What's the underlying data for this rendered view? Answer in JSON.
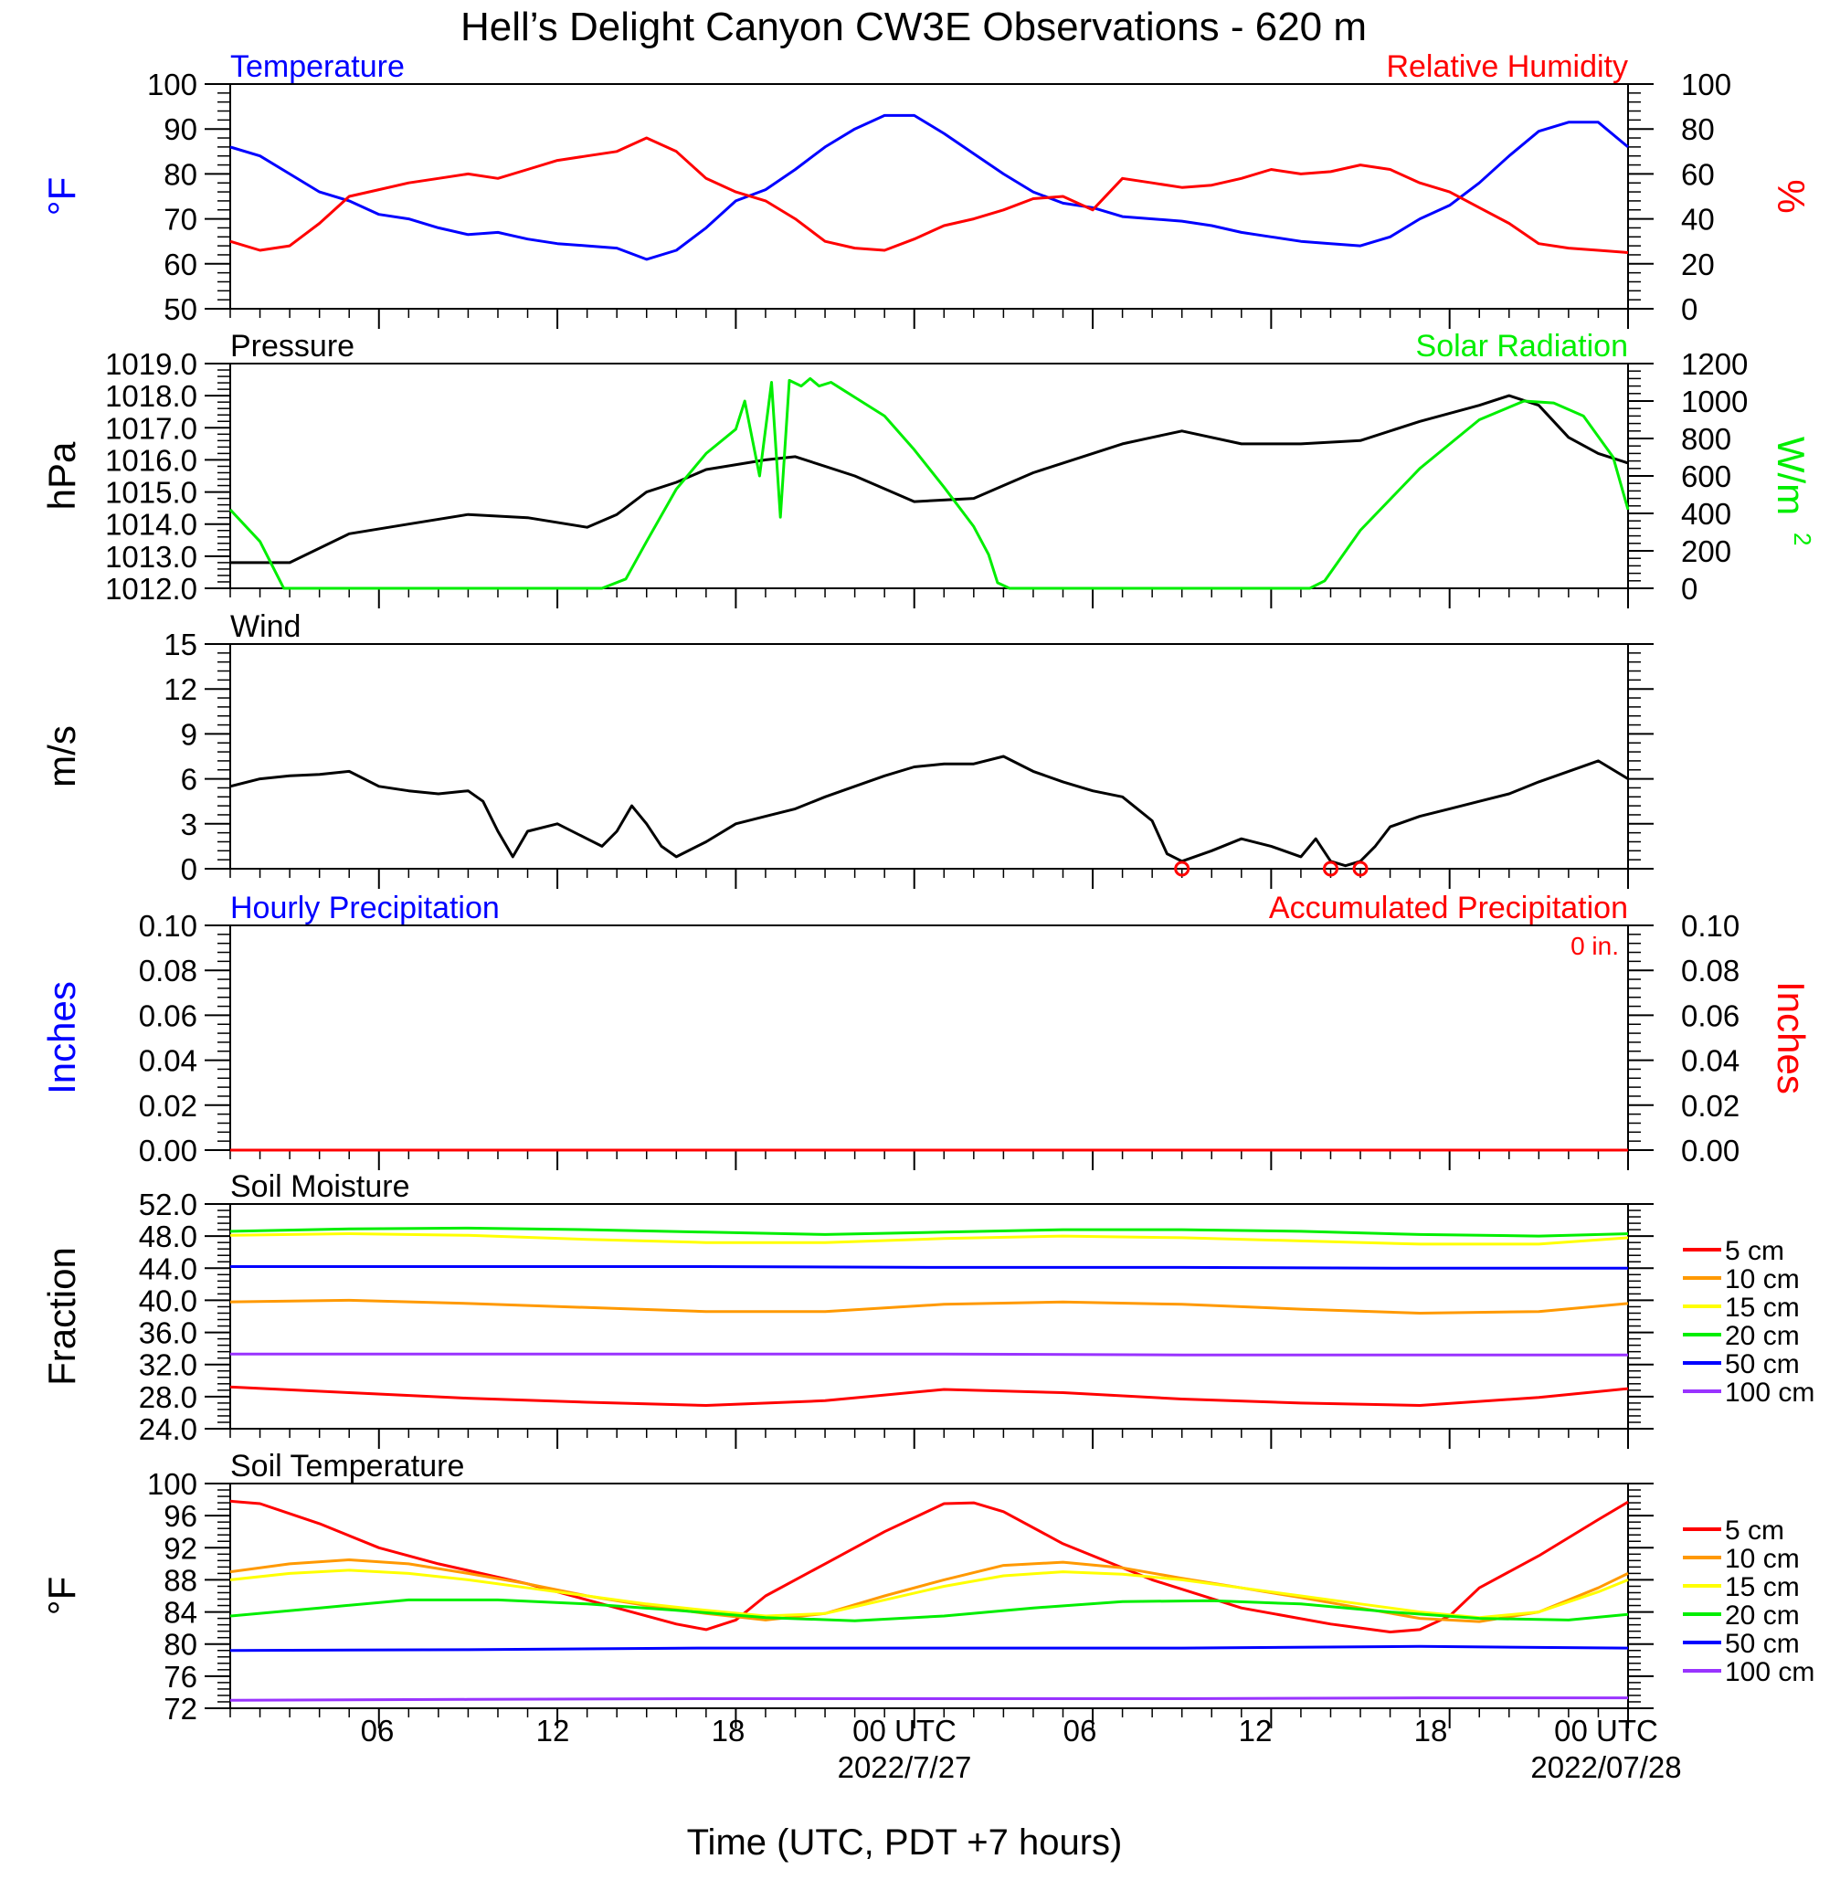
{
  "title": "Hell’s Delight Canyon CW3E Observations - 620 m",
  "xaxis": {
    "title": "Time (UTC, PDT +7 hours)",
    "tick_labels": [
      "06",
      "12",
      "18",
      "00 UTC",
      "06",
      "12",
      "18",
      "00 UTC"
    ],
    "date_labels": [
      "2022/7/27",
      "2022/07/28"
    ]
  },
  "colors": {
    "blue": "#0000ff",
    "red": "#ff0000",
    "green": "#00ee00",
    "orange": "#ff9900",
    "yellow": "#ffff00",
    "purple": "#9933ff",
    "black": "#000000"
  },
  "chart_data": [
    {
      "id": "temp_rh",
      "type": "line",
      "left_title": "Temperature",
      "right_title": "Relative Humidity",
      "ylabel_left": "°F",
      "ylabel_right": "%",
      "ylim_left": [
        50,
        100
      ],
      "ylim_right": [
        0,
        100
      ],
      "yticks_left": [
        "50",
        "60",
        "70",
        "80",
        "90",
        "100"
      ],
      "yticks_right": [
        "0",
        "20",
        "40",
        "60",
        "80",
        "100"
      ],
      "series": [
        {
          "color": "blue",
          "axis": "left",
          "x": [
            0,
            1,
            2,
            3,
            4,
            5,
            6,
            7,
            8,
            9,
            10,
            11,
            12,
            13,
            14,
            15,
            16,
            17,
            18,
            19,
            20,
            21,
            22,
            23,
            24,
            25,
            26,
            27,
            28,
            29,
            30,
            31,
            32,
            33,
            34,
            35,
            36,
            37,
            38,
            39,
            40,
            41,
            42,
            43,
            44,
            45,
            46,
            47
          ],
          "values": [
            86,
            84,
            80,
            76,
            74,
            71,
            70,
            68,
            66.5,
            67,
            65.5,
            64.5,
            64,
            63.5,
            61,
            63,
            68,
            74,
            76.5,
            81,
            86,
            90,
            93,
            93,
            89,
            84.5,
            80,
            76,
            73.5,
            72.5,
            70.5,
            70,
            69.5,
            68.5,
            67,
            66,
            65,
            64.5,
            64,
            66,
            70,
            73,
            78,
            84,
            89.5,
            91.5,
            91.5,
            86
          ]
        },
        {
          "color": "red",
          "axis": "right",
          "x": [
            0,
            1,
            2,
            3,
            4,
            5,
            6,
            7,
            8,
            9,
            10,
            11,
            12,
            13,
            14,
            15,
            16,
            17,
            18,
            19,
            20,
            21,
            22,
            23,
            24,
            25,
            26,
            27,
            28,
            29,
            30,
            31,
            32,
            33,
            34,
            35,
            36,
            37,
            38,
            39,
            40,
            41,
            42,
            43,
            44,
            45,
            46,
            47
          ],
          "values": [
            30,
            26,
            28,
            38,
            50,
            53,
            56,
            58,
            60,
            58,
            62,
            66,
            68,
            70,
            76,
            70,
            58,
            52,
            48,
            40,
            30,
            27,
            26,
            31,
            37,
            40,
            44,
            49,
            50,
            44,
            58,
            56,
            54,
            55,
            58,
            62,
            60,
            61,
            64,
            62,
            56,
            52,
            45,
            38,
            29,
            27,
            26,
            25
          ]
        }
      ]
    },
    {
      "id": "pressure_solar",
      "type": "line",
      "left_title": "Pressure",
      "right_title": "Solar Radiation",
      "ylabel_left": "hPa",
      "ylabel_right": "W/m",
      "ylabel_right_sup": "2",
      "ylim_left": [
        1012,
        1019
      ],
      "ylim_right": [
        0,
        1200
      ],
      "yticks_left": [
        "1012.0",
        "1013.0",
        "1014.0",
        "1015.0",
        "1016.0",
        "1017.0",
        "1018.0",
        "1019.0"
      ],
      "yticks_right": [
        "0",
        "200",
        "400",
        "600",
        "800",
        "1000",
        "1200"
      ],
      "series": [
        {
          "color": "black",
          "axis": "left",
          "x": [
            0,
            2,
            4,
            6,
            8,
            10,
            12,
            13,
            14,
            15,
            16,
            18,
            19,
            21,
            23,
            25,
            26,
            27,
            28,
            30,
            31,
            32,
            34,
            36,
            38,
            40,
            42,
            43,
            44,
            45,
            46,
            47
          ],
          "values": [
            1012.8,
            1012.8,
            1013.7,
            1014.0,
            1014.3,
            1014.2,
            1013.9,
            1014.3,
            1015.0,
            1015.3,
            1015.7,
            1016.0,
            1016.1,
            1015.5,
            1014.7,
            1014.8,
            1015.2,
            1015.6,
            1015.9,
            1016.5,
            1016.7,
            1016.9,
            1016.5,
            1016.5,
            1016.6,
            1017.2,
            1017.7,
            1018.0,
            1017.7,
            1016.7,
            1016.2,
            1015.9
          ]
        },
        {
          "color": "green",
          "axis": "right",
          "x": [
            0,
            1,
            1.8,
            12.5,
            13.3,
            14,
            15,
            16,
            17,
            17.3,
            17.8,
            18.2,
            18.5,
            18.8,
            19.2,
            19.5,
            19.8,
            20.2,
            20.6,
            21,
            22,
            23,
            24,
            25,
            25.5,
            25.8,
            26.2,
            36.3,
            36.8,
            38,
            40,
            42,
            43.5,
            44.5,
            45.5,
            46.5,
            47
          ],
          "values": [
            420,
            250,
            0,
            0,
            50,
            250,
            530,
            720,
            850,
            1000,
            600,
            1100,
            380,
            1110,
            1080,
            1120,
            1080,
            1100,
            1060,
            1020,
            920,
            740,
            540,
            330,
            180,
            30,
            0,
            0,
            40,
            310,
            640,
            900,
            1000,
            990,
            920,
            700,
            420
          ]
        }
      ]
    },
    {
      "id": "wind",
      "type": "line",
      "left_title": "Wind",
      "ylabel_left": "m/s",
      "ylim_left": [
        0,
        15
      ],
      "yticks_left": [
        "0",
        "3",
        "6",
        "9",
        "12",
        "15"
      ],
      "calm_markers_x": [
        32,
        37,
        38
      ],
      "series": [
        {
          "color": "black",
          "axis": "left",
          "x": [
            0,
            1,
            2,
            3,
            4,
            5,
            6,
            7,
            8,
            8.5,
            9,
            9.5,
            10,
            11,
            12,
            12.5,
            13,
            13.5,
            14,
            14.5,
            15,
            16,
            17,
            18,
            19,
            20,
            21,
            22,
            23,
            24,
            25,
            26,
            27,
            28,
            29,
            30,
            31,
            31.5,
            32,
            33,
            34,
            35,
            36,
            36.5,
            37,
            37.5,
            38,
            38.5,
            39,
            40,
            41,
            42,
            43,
            44,
            45,
            46,
            47
          ],
          "values": [
            5.5,
            6,
            6.2,
            6.3,
            6.5,
            5.5,
            5.2,
            5,
            5.2,
            4.5,
            2.5,
            0.8,
            2.5,
            3,
            2,
            1.5,
            2.5,
            4.2,
            3,
            1.5,
            0.8,
            1.8,
            3,
            3.5,
            4,
            4.8,
            5.5,
            6.2,
            6.8,
            7,
            7,
            7.5,
            6.5,
            5.8,
            5.2,
            4.8,
            3.2,
            1,
            0.5,
            1.2,
            2,
            1.5,
            0.8,
            2,
            0.5,
            0.2,
            0.5,
            1.5,
            2.8,
            3.5,
            4,
            4.5,
            5,
            5.8,
            6.5,
            7.2,
            6
          ]
        }
      ]
    },
    {
      "id": "precip",
      "type": "line",
      "left_title": "Hourly Precipitation",
      "right_title": "Accumulated Precipitation",
      "annotation": "0 in.",
      "ylabel_left": "Inches",
      "ylabel_right": "Inches",
      "ylim_left": [
        0,
        0.1
      ],
      "ylim_right": [
        0,
        0.1
      ],
      "yticks_left": [
        "0.00",
        "0.02",
        "0.04",
        "0.06",
        "0.08",
        "0.10"
      ],
      "yticks_right": [
        "0.00",
        "0.02",
        "0.04",
        "0.06",
        "0.08",
        "0.10"
      ],
      "series": [
        {
          "color": "red",
          "axis": "left",
          "x": [
            0,
            47
          ],
          "values": [
            0,
            0
          ]
        }
      ]
    },
    {
      "id": "soil_moisture",
      "type": "line",
      "left_title": "Soil Moisture",
      "ylabel_left": "Fraction",
      "ylim_left": [
        24,
        52
      ],
      "yticks_left": [
        "24.0",
        "28.0",
        "32.0",
        "36.0",
        "40.0",
        "44.0",
        "48.0",
        "52.0"
      ],
      "legend_placement": "right",
      "series": [
        {
          "name": "5 cm",
          "color": "red",
          "axis": "left",
          "x": [
            0,
            4,
            8,
            12,
            16,
            20,
            24,
            28,
            32,
            36,
            40,
            44,
            47
          ],
          "values": [
            29.2,
            28.5,
            27.8,
            27.3,
            26.9,
            27.5,
            28.9,
            28.5,
            27.7,
            27.2,
            26.9,
            27.9,
            29.0
          ]
        },
        {
          "name": "10 cm",
          "color": "orange",
          "axis": "left",
          "x": [
            0,
            4,
            8,
            12,
            16,
            20,
            24,
            28,
            32,
            36,
            40,
            44,
            47
          ],
          "values": [
            39.8,
            40.0,
            39.6,
            39.1,
            38.6,
            38.6,
            39.5,
            39.8,
            39.5,
            38.9,
            38.4,
            38.6,
            39.6
          ]
        },
        {
          "name": "15 cm",
          "color": "yellow",
          "axis": "left",
          "x": [
            0,
            4,
            8,
            12,
            16,
            20,
            24,
            28,
            32,
            36,
            40,
            44,
            47
          ],
          "values": [
            48.1,
            48.3,
            48.1,
            47.6,
            47.2,
            47.2,
            47.7,
            48.0,
            47.8,
            47.4,
            47.0,
            47.0,
            47.8
          ]
        },
        {
          "name": "20 cm",
          "color": "green",
          "axis": "left",
          "x": [
            0,
            4,
            8,
            12,
            16,
            20,
            24,
            28,
            32,
            36,
            40,
            44,
            47
          ],
          "values": [
            48.6,
            48.9,
            49.0,
            48.8,
            48.5,
            48.2,
            48.5,
            48.8,
            48.8,
            48.6,
            48.2,
            48.0,
            48.3
          ]
        },
        {
          "name": "50 cm",
          "color": "blue",
          "axis": "left",
          "x": [
            0,
            8,
            16,
            24,
            32,
            40,
            47
          ],
          "values": [
            44.2,
            44.2,
            44.2,
            44.1,
            44.1,
            44.0,
            44.0
          ]
        },
        {
          "name": "100 cm",
          "color": "purple",
          "axis": "left",
          "x": [
            0,
            8,
            16,
            24,
            32,
            40,
            47
          ],
          "values": [
            33.3,
            33.3,
            33.3,
            33.3,
            33.2,
            33.2,
            33.2
          ]
        }
      ]
    },
    {
      "id": "soil_temperature",
      "type": "line",
      "left_title": "Soil Temperature",
      "ylabel_left": "°F",
      "ylim_left": [
        72,
        100
      ],
      "yticks_left": [
        "72",
        "76",
        "80",
        "84",
        "88",
        "92",
        "96",
        "100"
      ],
      "legend_placement": "right",
      "series": [
        {
          "name": "5 cm",
          "color": "red",
          "axis": "left",
          "x": [
            0,
            1,
            3,
            5,
            7,
            10,
            13,
            15,
            16,
            17,
            18,
            20,
            22,
            24,
            25,
            26,
            28,
            31,
            34,
            37,
            39,
            40,
            41,
            42,
            44,
            46,
            47
          ],
          "values": [
            97.8,
            97.5,
            95,
            92,
            90,
            87.5,
            84.5,
            82.5,
            81.8,
            83,
            86,
            90,
            94,
            97.5,
            97.6,
            96.5,
            92.5,
            88,
            84.5,
            82.5,
            81.5,
            81.8,
            83.5,
            87,
            91,
            95.5,
            97.7
          ]
        },
        {
          "name": "10 cm",
          "color": "orange",
          "axis": "left",
          "x": [
            0,
            2,
            4,
            6,
            8,
            10,
            12,
            14,
            16,
            18,
            20,
            22,
            24,
            26,
            28,
            30,
            32,
            34,
            36,
            38,
            40,
            42,
            44,
            46,
            47
          ],
          "values": [
            89,
            90,
            90.5,
            90,
            88.8,
            87.5,
            86,
            84.8,
            83.8,
            83,
            83.8,
            86,
            88,
            89.8,
            90.2,
            89.5,
            88.2,
            87,
            85.8,
            84.5,
            83.2,
            82.8,
            84,
            87,
            88.8
          ]
        },
        {
          "name": "15 cm",
          "color": "yellow",
          "axis": "left",
          "x": [
            0,
            2,
            4,
            6,
            8,
            10,
            12,
            14,
            16,
            18,
            20,
            22,
            24,
            26,
            28,
            30,
            32,
            34,
            36,
            38,
            40,
            42,
            44,
            46,
            47
          ],
          "values": [
            88,
            88.8,
            89.2,
            88.8,
            88,
            87,
            86,
            85,
            84.2,
            83.5,
            83.8,
            85.5,
            87.2,
            88.5,
            89,
            88.7,
            88,
            87,
            86,
            85,
            84,
            83.3,
            84,
            86.5,
            88
          ]
        },
        {
          "name": "20 cm",
          "color": "green",
          "axis": "left",
          "x": [
            0,
            3,
            6,
            9,
            12,
            15,
            18,
            21,
            24,
            27,
            30,
            33,
            36,
            39,
            42,
            45,
            47
          ],
          "values": [
            83.5,
            84.5,
            85.5,
            85.5,
            85,
            84.2,
            83.3,
            82.9,
            83.5,
            84.5,
            85.3,
            85.4,
            85,
            84,
            83.2,
            83,
            83.7
          ]
        },
        {
          "name": "50 cm",
          "color": "blue",
          "axis": "left",
          "x": [
            0,
            8,
            16,
            24,
            32,
            40,
            47
          ],
          "values": [
            79.2,
            79.3,
            79.5,
            79.5,
            79.5,
            79.7,
            79.5
          ]
        },
        {
          "name": "100 cm",
          "color": "purple",
          "axis": "left",
          "x": [
            0,
            8,
            16,
            24,
            32,
            40,
            47
          ],
          "values": [
            73.0,
            73.1,
            73.2,
            73.2,
            73.2,
            73.3,
            73.3
          ]
        }
      ]
    }
  ]
}
